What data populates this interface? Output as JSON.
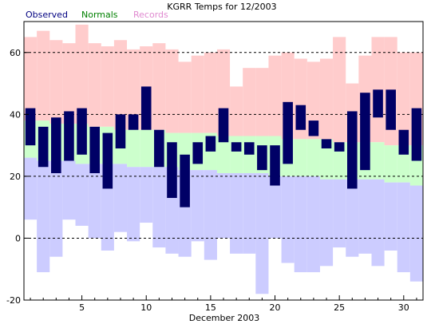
{
  "chart_data": {
    "type": "bar",
    "title": "KGRR Temps for 12/2003",
    "xlabel": "December 2003",
    "ylabel": "",
    "xlim": [
      0.5,
      31.5
    ],
    "ylim": [
      -20,
      70
    ],
    "x_ticks": [
      5,
      10,
      15,
      20,
      25,
      30
    ],
    "y_ticks": [
      -20,
      0,
      20,
      40,
      60
    ],
    "dashed_gridlines": [
      0,
      20,
      40,
      60
    ],
    "legend_placement": "top-left",
    "colors": {
      "observed": "#000066",
      "normals": "#ccffcc",
      "records": "#ffcccc",
      "below_normal": "#ccccff",
      "observed_label": "#000080",
      "normals_label": "#008000",
      "records_label": "#e08ad0"
    },
    "series": [
      {
        "name": "Observed",
        "days": [
          1,
          2,
          3,
          4,
          5,
          6,
          7,
          8,
          9,
          10,
          11,
          12,
          13,
          14,
          15,
          16,
          17,
          18,
          19,
          20,
          21,
          22,
          23,
          24,
          25,
          26,
          27,
          28,
          29,
          30,
          31
        ],
        "high": [
          42,
          36,
          39,
          41,
          42,
          36,
          34,
          40,
          40,
          49,
          35,
          31,
          27,
          31,
          33,
          42,
          31,
          31,
          30,
          30,
          44,
          43,
          38,
          32,
          31,
          41,
          47,
          48,
          48,
          35,
          42
        ],
        "low": [
          30,
          23,
          21,
          25,
          27,
          21,
          16,
          29,
          35,
          35,
          23,
          13,
          10,
          24,
          28,
          31,
          28,
          27,
          22,
          17,
          24,
          35,
          33,
          29,
          28,
          16,
          22,
          39,
          35,
          27,
          25
        ]
      },
      {
        "name": "Normals",
        "days": [
          1,
          2,
          3,
          4,
          5,
          6,
          7,
          8,
          9,
          10,
          11,
          12,
          13,
          14,
          15,
          16,
          17,
          18,
          19,
          20,
          21,
          22,
          23,
          24,
          25,
          26,
          27,
          28,
          29,
          30,
          31
        ],
        "high": [
          38,
          38,
          37,
          37,
          37,
          36,
          36,
          35,
          35,
          35,
          35,
          34,
          34,
          34,
          34,
          33,
          33,
          33,
          33,
          33,
          32,
          32,
          32,
          32,
          31,
          31,
          31,
          31,
          30,
          30,
          30
        ],
        "low": [
          26,
          25,
          25,
          25,
          24,
          24,
          24,
          24,
          23,
          23,
          23,
          23,
          22,
          22,
          22,
          21,
          21,
          21,
          21,
          20,
          20,
          20,
          20,
          19,
          19,
          19,
          19,
          19,
          18,
          18,
          17
        ]
      },
      {
        "name": "Records",
        "days": [
          1,
          2,
          3,
          4,
          5,
          6,
          7,
          8,
          9,
          10,
          11,
          12,
          13,
          14,
          15,
          16,
          17,
          18,
          19,
          20,
          21,
          22,
          23,
          24,
          25,
          26,
          27,
          28,
          29,
          30,
          31
        ],
        "high": [
          65,
          67,
          64,
          63,
          69,
          63,
          62,
          64,
          61,
          62,
          63,
          61,
          57,
          59,
          60,
          61,
          49,
          55,
          55,
          59,
          60,
          58,
          57,
          58,
          65,
          50,
          59,
          65,
          65,
          60,
          60
        ],
        "low": [
          6,
          -11,
          -6,
          6,
          4,
          0,
          -4,
          2,
          -1,
          5,
          -3,
          -5,
          -6,
          -1,
          -7,
          0,
          -5,
          -5,
          -18,
          0,
          -8,
          -11,
          -11,
          -9,
          -3,
          -6,
          -5,
          -9,
          -4,
          -11,
          -14
        ]
      }
    ]
  }
}
